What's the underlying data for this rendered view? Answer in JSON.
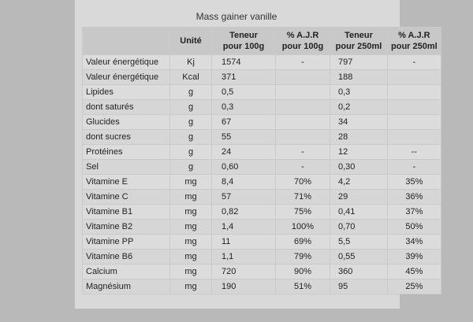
{
  "title": "Mass gainer vanille",
  "headers": {
    "unit": "Unité",
    "teneur100_l1": "Teneur",
    "teneur100_l2": "pour 100g",
    "ajr100_l1": "% A.J.R",
    "ajr100_l2": "pour 100g",
    "teneur250_l1": "Teneur",
    "teneur250_l2": "pour 250ml",
    "ajr250_l1": "% A.J.R",
    "ajr250_l2": "pour 250ml"
  },
  "rows": [
    {
      "name": "Valeur énergétique",
      "unit": "Kj",
      "t100": "1574",
      "a100": "-",
      "t250": "797",
      "a250": "-"
    },
    {
      "name": "Valeur énergétique",
      "unit": "Kcal",
      "t100": "371",
      "a100": "",
      "t250": "188",
      "a250": ""
    },
    {
      "name": "Lipides",
      "unit": "g",
      "t100": "0,5",
      "a100": "",
      "t250": "0,3",
      "a250": ""
    },
    {
      "name": "dont saturés",
      "unit": "g",
      "t100": "0,3",
      "a100": "",
      "t250": "0,2",
      "a250": ""
    },
    {
      "name": "Glucides",
      "unit": "g",
      "t100": "67",
      "a100": "",
      "t250": "34",
      "a250": ""
    },
    {
      "name": "dont sucres",
      "unit": "g",
      "t100": "55",
      "a100": "",
      "t250": "28",
      "a250": ""
    },
    {
      "name": "Protéines",
      "unit": "g",
      "t100": "24",
      "a100": "-",
      "t250": "12",
      "a250": "--"
    },
    {
      "name": "Sel",
      "unit": "g",
      "t100": "0,60",
      "a100": "-",
      "t250": "0,30",
      "a250": "-"
    },
    {
      "name": "Vitamine E",
      "unit": "mg",
      "t100": "8,4",
      "a100": "70%",
      "t250": "4,2",
      "a250": "35%"
    },
    {
      "name": "Vitamine C",
      "unit": "mg",
      "t100": "57",
      "a100": "71%",
      "t250": "29",
      "a250": "36%"
    },
    {
      "name": "Vitamine B1",
      "unit": "mg",
      "t100": "0,82",
      "a100": "75%",
      "t250": "0,41",
      "a250": "37%"
    },
    {
      "name": "Vitamine B2",
      "unit": "mg",
      "t100": "1,4",
      "a100": "100%",
      "t250": "0,70",
      "a250": "50%"
    },
    {
      "name": "Vitamine PP",
      "unit": "mg",
      "t100": "11",
      "a100": "69%",
      "t250": "5,5",
      "a250": "34%"
    },
    {
      "name": "Vitamine B6",
      "unit": "mg",
      "t100": "1,1",
      "a100": "79%",
      "t250": "0,55",
      "a250": "39%"
    },
    {
      "name": "Calcium",
      "unit": "mg",
      "t100": "720",
      "a100": "90%",
      "t250": "360",
      "a250": "45%"
    },
    {
      "name": "Magnésium",
      "unit": "mg",
      "t100": "190",
      "a100": "51%",
      "t250": "95",
      "a250": "25%"
    }
  ]
}
